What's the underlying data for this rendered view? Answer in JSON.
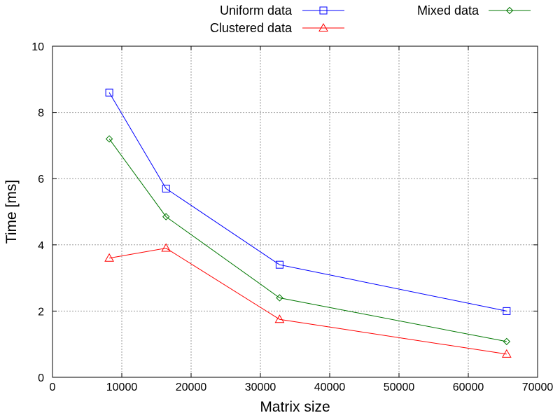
{
  "chart_data": {
    "type": "line",
    "title": "",
    "xlabel": "Matrix size",
    "ylabel": "Time [ms]",
    "xlim": [
      0,
      70000
    ],
    "ylim": [
      0,
      10
    ],
    "xticks": [
      0,
      10000,
      20000,
      30000,
      40000,
      50000,
      60000,
      70000
    ],
    "yticks": [
      0,
      2,
      4,
      6,
      8,
      10
    ],
    "grid": true,
    "legend_position": "top (above plot, two columns)",
    "x": [
      8192,
      16384,
      32768,
      65536
    ],
    "series": [
      {
        "name": "Uniform data",
        "values": [
          8.6,
          5.7,
          3.4,
          2.0
        ],
        "color": "#0000ff",
        "marker": "square"
      },
      {
        "name": "Clustered data",
        "values": [
          3.6,
          3.9,
          1.75,
          0.7
        ],
        "color": "#ff0000",
        "marker": "triangle"
      },
      {
        "name": "Mixed data",
        "values": [
          7.2,
          4.85,
          2.4,
          1.08
        ],
        "color": "#007700",
        "marker": "diamond"
      }
    ]
  }
}
